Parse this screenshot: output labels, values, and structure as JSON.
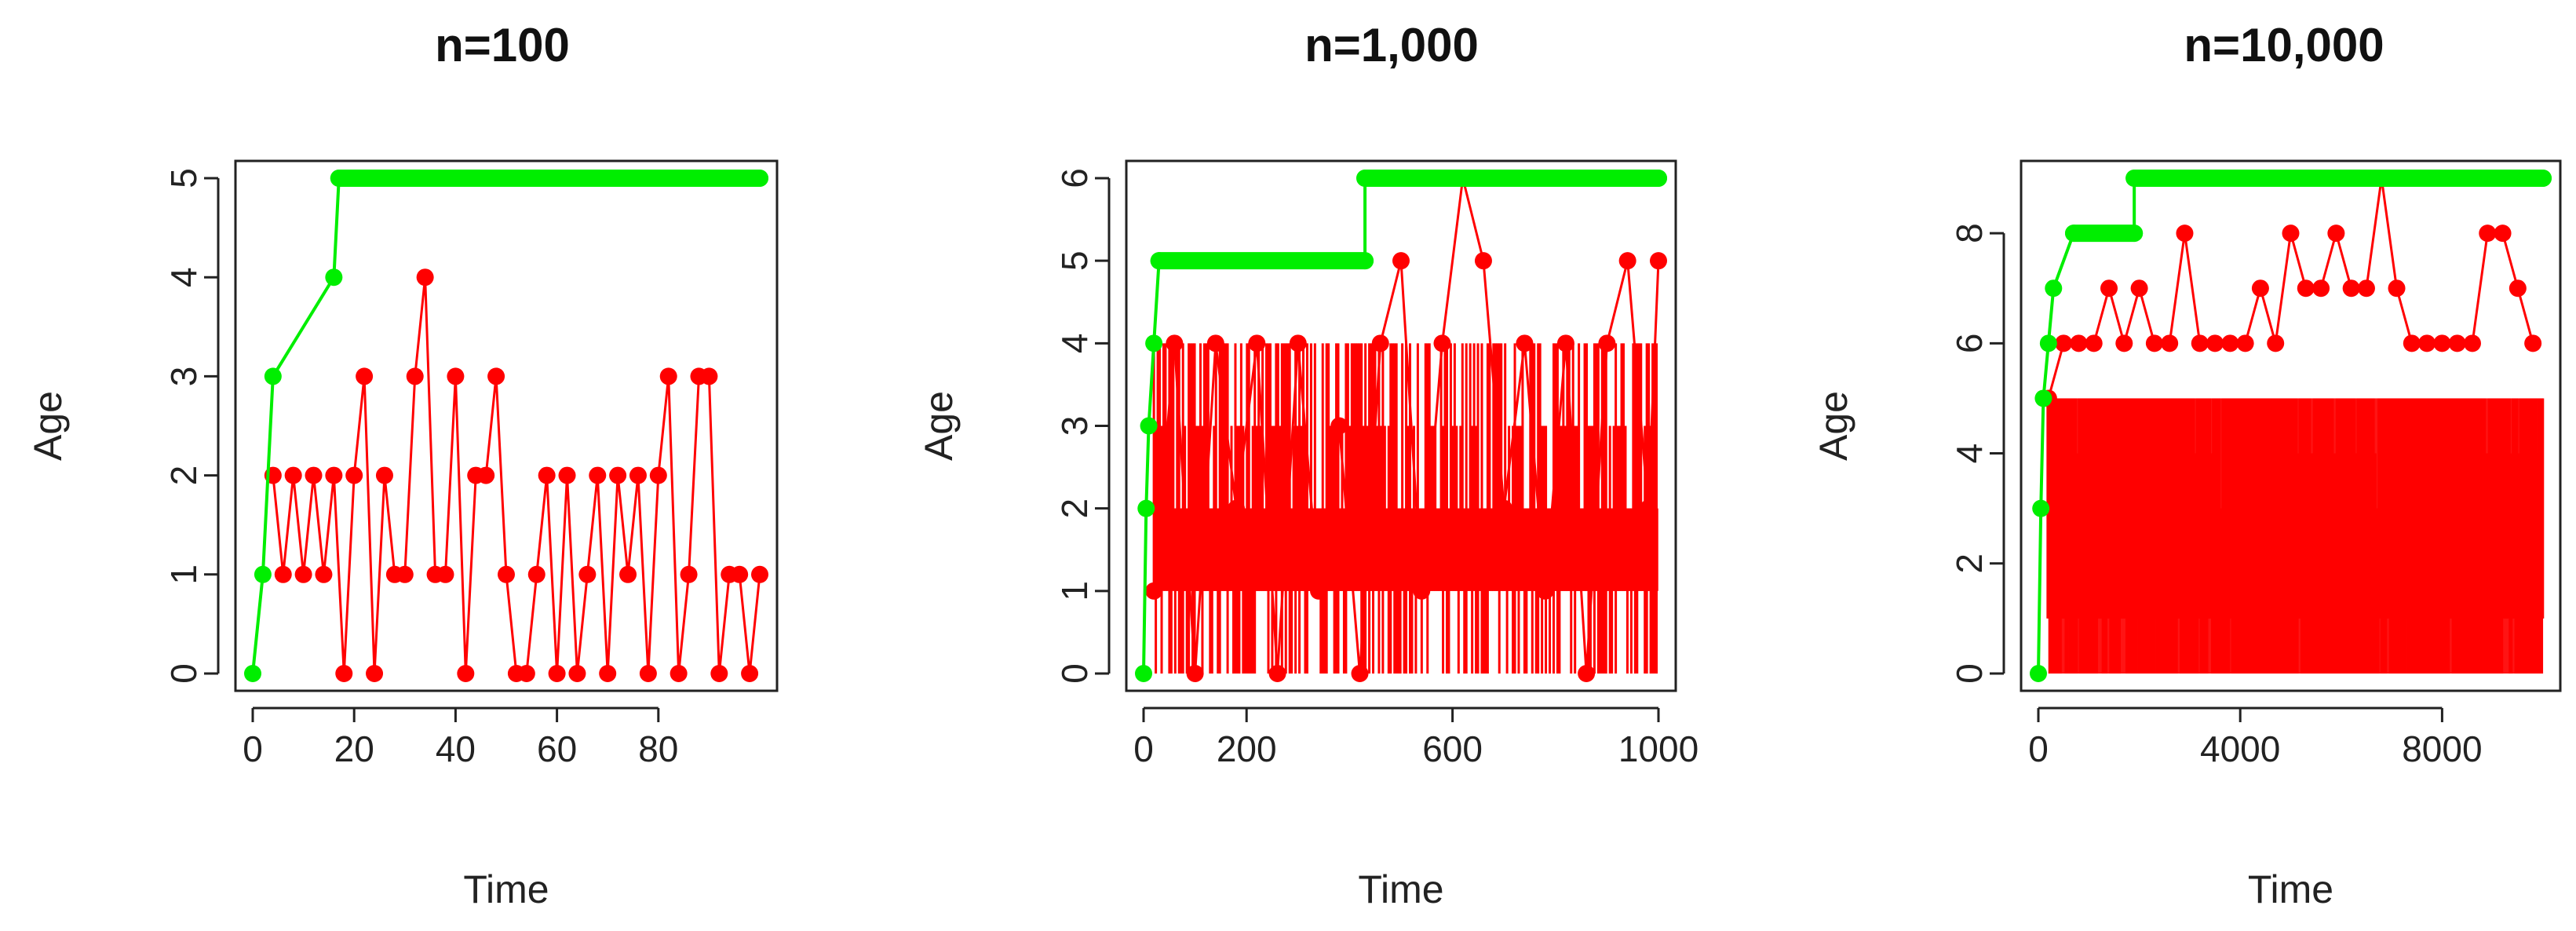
{
  "colors": {
    "red_series": "#ff0000",
    "green_series": "#00ee00",
    "axis": "#222222"
  },
  "chart_data": [
    {
      "type": "line",
      "title": "n=100",
      "xlabel": "Time",
      "ylabel": "Age",
      "xlim": [
        0,
        100
      ],
      "ylim": [
        0,
        5
      ],
      "xticks": [
        0,
        20,
        40,
        60,
        80
      ],
      "yticks": [
        0,
        1,
        2,
        3,
        4,
        5
      ],
      "grid": false,
      "series": [
        {
          "color": "#00ee00",
          "x": [
            0,
            2,
            4,
            16,
            17,
            100
          ],
          "y": [
            0,
            1,
            3,
            4,
            5,
            5
          ]
        },
        {
          "color": "#ff0000",
          "x": [
            4,
            6,
            8,
            10,
            12,
            14,
            16,
            18,
            20,
            22,
            24,
            26,
            28,
            30,
            32,
            34,
            36,
            38,
            40,
            42,
            44,
            46,
            48,
            50,
            52,
            54,
            56,
            58,
            60,
            62,
            64,
            66,
            68,
            70,
            72,
            74,
            76,
            78,
            80,
            82,
            84,
            86,
            88,
            90,
            92,
            94,
            96,
            98,
            100
          ],
          "y": [
            2,
            1,
            2,
            1,
            2,
            1,
            2,
            0,
            2,
            3,
            0,
            2,
            1,
            1,
            3,
            4,
            1,
            1,
            3,
            0,
            2,
            2,
            3,
            1,
            0,
            0,
            1,
            2,
            0,
            2,
            0,
            1,
            2,
            0,
            2,
            1,
            2,
            0,
            2,
            3,
            0,
            1,
            3,
            3,
            0,
            1,
            1,
            0,
            1
          ]
        }
      ]
    },
    {
      "type": "line",
      "title": "n=1,000",
      "xlabel": "Time",
      "ylabel": "Age",
      "xlim": [
        0,
        1000
      ],
      "ylim": [
        0,
        6
      ],
      "xticks": [
        0,
        200,
        600,
        1000
      ],
      "yticks": [
        0,
        1,
        2,
        3,
        4,
        5,
        6
      ],
      "grid": false,
      "series": [
        {
          "color": "#00ee00",
          "x": [
            0,
            5,
            10,
            20,
            30,
            430,
            430,
            1000
          ],
          "y": [
            0,
            2,
            3,
            4,
            5,
            5,
            6,
            6
          ]
        },
        {
          "color": "#ff0000",
          "x": [
            20,
            60,
            100,
            140,
            180,
            220,
            260,
            300,
            340,
            380,
            420,
            460,
            500,
            540,
            580,
            620,
            660,
            700,
            740,
            780,
            820,
            860,
            900,
            940,
            980,
            1000
          ],
          "y": [
            1,
            4,
            0,
            4,
            2,
            4,
            0,
            4,
            1,
            3,
            0,
            4,
            5,
            1,
            4,
            6,
            5,
            2,
            4,
            1,
            4,
            0,
            4,
            5,
            2,
            5
          ]
        }
      ]
    },
    {
      "type": "line",
      "title": "n=10,000",
      "xlabel": "Time",
      "ylabel": "Age",
      "xlim": [
        0,
        10000
      ],
      "ylim": [
        0,
        9
      ],
      "xticks": [
        0,
        4000,
        8000
      ],
      "yticks": [
        0,
        2,
        4,
        6,
        8
      ],
      "grid": false,
      "series": [
        {
          "color": "#00ee00",
          "x": [
            0,
            50,
            100,
            200,
            300,
            700,
            1900,
            1900,
            10000
          ],
          "y": [
            0,
            3,
            5,
            6,
            7,
            8,
            8,
            9,
            9
          ]
        },
        {
          "color": "#ff0000",
          "x": [
            200,
            500,
            800,
            1100,
            1400,
            1700,
            2000,
            2300,
            2600,
            2900,
            3200,
            3500,
            3800,
            4100,
            4400,
            4700,
            5000,
            5300,
            5600,
            5900,
            6200,
            6500,
            6800,
            7100,
            7400,
            7700,
            8000,
            8300,
            8600,
            8900,
            9200,
            9500,
            9800
          ],
          "y": [
            5,
            6,
            6,
            6,
            7,
            6,
            7,
            6,
            6,
            8,
            6,
            6,
            6,
            6,
            7,
            6,
            8,
            7,
            7,
            8,
            7,
            7,
            9,
            7,
            6,
            6,
            6,
            6,
            6,
            8,
            8,
            7,
            6
          ]
        }
      ]
    }
  ]
}
